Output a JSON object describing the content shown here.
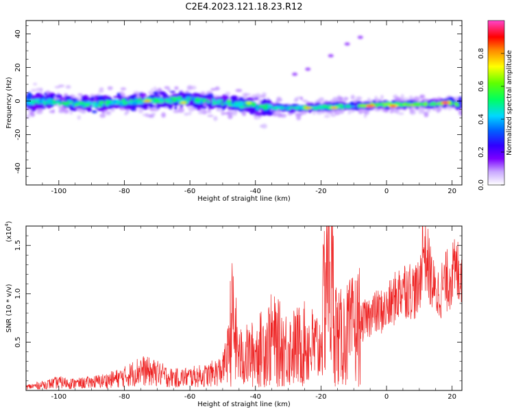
{
  "figure": {
    "title": "C2E4.2023.121.18.23.R12"
  },
  "chart_data": [
    {
      "type": "heatmap",
      "xlabel": "Height of straight line (km)",
      "ylabel": "Frequency (Hz)",
      "xlim": [
        -110,
        23
      ],
      "ylim": [
        -50,
        48
      ],
      "xticks": [
        -100,
        -80,
        -60,
        -40,
        -20,
        0,
        20
      ],
      "xtick_labels": [
        "-100",
        "-80",
        "-60",
        "-40",
        "-20",
        "0",
        "20"
      ],
      "yticks": [
        -40,
        -20,
        0,
        20,
        40
      ],
      "ytick_labels": [
        "-40",
        "-20",
        "0",
        "20",
        "40"
      ],
      "description_points": {
        "band_center_hz": [
          {
            "x": -110,
            "y": 0
          },
          {
            "x": -90,
            "y": -2
          },
          {
            "x": -75,
            "y": 0
          },
          {
            "x": -60,
            "y": 1
          },
          {
            "x": -45,
            "y": -2
          },
          {
            "x": -35,
            "y": -4
          },
          {
            "x": -25,
            "y": -4
          },
          {
            "x": -10,
            "y": -3
          },
          {
            "x": 0,
            "y": -2
          },
          {
            "x": 10,
            "y": -2
          },
          {
            "x": 20,
            "y": -1
          },
          {
            "x": 23,
            "y": -3
          }
        ],
        "peak_positions": [
          {
            "x": -73,
            "y": 0,
            "amp": 0.8
          },
          {
            "x": -62,
            "y": -1,
            "amp": 0.75
          },
          {
            "x": -42,
            "y": -1,
            "amp": 0.7
          },
          {
            "x": -24,
            "y": -4,
            "amp": 0.8
          },
          {
            "x": -16,
            "y": -4,
            "amp": 0.8
          },
          {
            "x": -5,
            "y": -3,
            "amp": 0.95
          },
          {
            "x": 2,
            "y": -3,
            "amp": 0.9
          },
          {
            "x": 18,
            "y": -1,
            "amp": 0.95
          }
        ],
        "faint_branch": [
          {
            "x": -28,
            "y": 16
          },
          {
            "x": -24,
            "y": 19
          },
          {
            "x": -17,
            "y": 27
          },
          {
            "x": -12,
            "y": 34
          },
          {
            "x": -8,
            "y": 38
          }
        ]
      },
      "colorbar": {
        "label": "Normalized spectral amplitude",
        "range": [
          0,
          1
        ],
        "ticks": [
          0,
          0.2,
          0.4,
          0.6,
          0.8
        ],
        "tick_labels": [
          "0.0",
          "0.2",
          "0.4",
          "0.6",
          "0.8"
        ]
      }
    },
    {
      "type": "line",
      "xlabel": "Height of straight line (km)",
      "ylabel": "SNR (10 * v/v)",
      "exponent_label": "(x10",
      "exponent_power": "4",
      "exponent_close": ")",
      "xlim": [
        -110,
        23
      ],
      "ylim": [
        0,
        1.7
      ],
      "xticks": [
        -100,
        -80,
        -60,
        -40,
        -20,
        0,
        20
      ],
      "xtick_labels": [
        "-100",
        "-80",
        "-60",
        "-40",
        "-20",
        "0",
        "20"
      ],
      "yticks": [
        0.5,
        1.0,
        1.5
      ],
      "ytick_labels": [
        "0.5",
        "1.0",
        "1.5"
      ],
      "series": [
        {
          "color": "#ee2222",
          "x": [
            -110,
            -105,
            -100,
            -95,
            -90,
            -85,
            -80,
            -75,
            -70,
            -65,
            -60,
            -55,
            -50,
            -47,
            -45,
            -40,
            -35,
            -30,
            -25,
            -20,
            -18,
            -15,
            -10,
            -5,
            0,
            5,
            10,
            11,
            15,
            20,
            23
          ],
          "y": [
            0.05,
            0.08,
            0.12,
            0.1,
            0.12,
            0.15,
            0.2,
            0.3,
            0.25,
            0.18,
            0.2,
            0.22,
            0.3,
            0.75,
            0.35,
            0.4,
            0.55,
            0.45,
            0.5,
            0.45,
            1.6,
            0.55,
            0.65,
            0.85,
            0.9,
            1.15,
            1.1,
            1.65,
            1.05,
            1.3,
            1.35
          ]
        }
      ]
    }
  ]
}
